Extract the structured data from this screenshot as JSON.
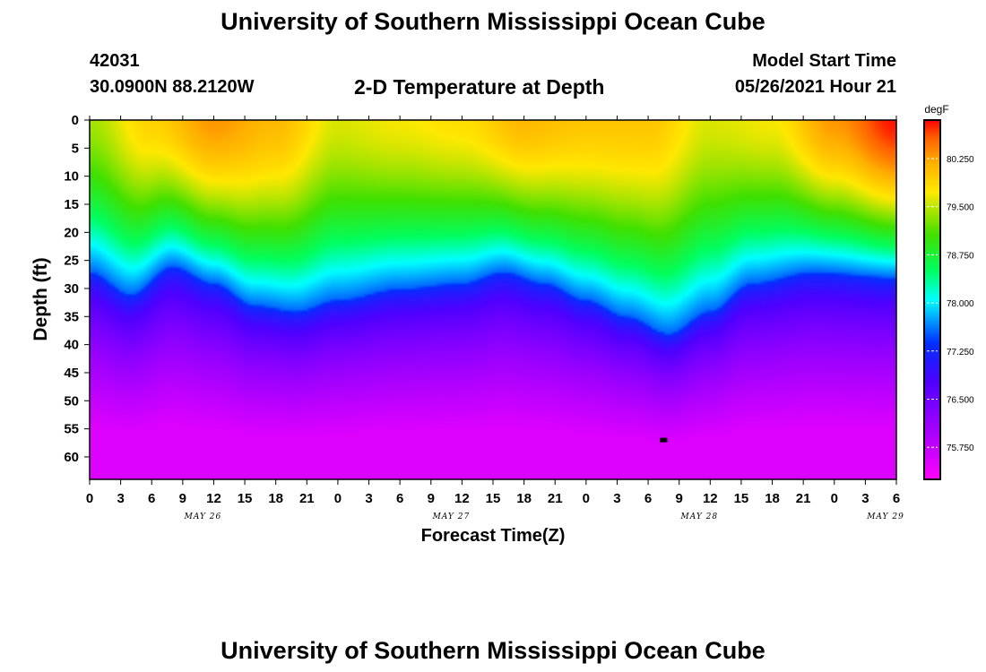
{
  "page": {
    "title_top": "University of Southern Mississippi Ocean Cube",
    "title_bottom": "University of Southern Mississippi Ocean Cube",
    "station_id": "42031",
    "station_coords": "30.0900N  88.2120W",
    "model_start_label": "Model Start Time",
    "model_start_value": "05/26/2021 Hour 21"
  },
  "chart_data": {
    "type": "heatmap",
    "title": "2-D Temperature at Depth",
    "xlabel": "Forecast Time(Z)",
    "ylabel": "Depth (ft)",
    "ylim": [
      0,
      64
    ],
    "xlim_hours": [
      0,
      78
    ],
    "y_ticks": [
      0,
      5,
      10,
      15,
      20,
      25,
      30,
      35,
      40,
      45,
      50,
      55,
      60
    ],
    "x_ticks": [
      {
        "h": 0,
        "label": "0"
      },
      {
        "h": 3,
        "label": "3"
      },
      {
        "h": 6,
        "label": "6"
      },
      {
        "h": 9,
        "label": "9"
      },
      {
        "h": 12,
        "label": "12"
      },
      {
        "h": 15,
        "label": "15"
      },
      {
        "h": 18,
        "label": "18"
      },
      {
        "h": 21,
        "label": "21"
      },
      {
        "h": 24,
        "label": "0"
      },
      {
        "h": 27,
        "label": "3"
      },
      {
        "h": 30,
        "label": "6"
      },
      {
        "h": 33,
        "label": "9"
      },
      {
        "h": 36,
        "label": "12"
      },
      {
        "h": 39,
        "label": "15"
      },
      {
        "h": 42,
        "label": "18"
      },
      {
        "h": 45,
        "label": "21"
      },
      {
        "h": 48,
        "label": "0"
      },
      {
        "h": 51,
        "label": "3"
      },
      {
        "h": 54,
        "label": "6"
      },
      {
        "h": 57,
        "label": "9"
      },
      {
        "h": 60,
        "label": "12"
      },
      {
        "h": 63,
        "label": "15"
      },
      {
        "h": 66,
        "label": "18"
      },
      {
        "h": 69,
        "label": "21"
      },
      {
        "h": 72,
        "label": "0"
      },
      {
        "h": 75,
        "label": "3"
      },
      {
        "h": 78,
        "label": "6"
      }
    ],
    "date_labels": [
      {
        "h": 12,
        "label": "MAY 26"
      },
      {
        "h": 36,
        "label": "MAY 27"
      },
      {
        "h": 60,
        "label": "MAY 28"
      },
      {
        "h": 78,
        "label": "MAY 29"
      }
    ],
    "colorbar": {
      "unit": "degF",
      "min": 75.25,
      "max": 80.85,
      "ticks": [
        75.75,
        76.5,
        77.25,
        78.0,
        78.75,
        79.5,
        80.25
      ],
      "tick_labels": [
        "75.750",
        "76.500",
        "77.250",
        "78.000",
        "78.750",
        "79.500",
        "80.250"
      ]
    },
    "thermocline_depth_ft": [
      {
        "h": 0,
        "d": 27
      },
      {
        "h": 4,
        "d": 31
      },
      {
        "h": 8,
        "d": 26
      },
      {
        "h": 12,
        "d": 29
      },
      {
        "h": 16,
        "d": 33
      },
      {
        "h": 20,
        "d": 34
      },
      {
        "h": 24,
        "d": 32
      },
      {
        "h": 30,
        "d": 30
      },
      {
        "h": 36,
        "d": 29
      },
      {
        "h": 40,
        "d": 27
      },
      {
        "h": 44,
        "d": 29
      },
      {
        "h": 48,
        "d": 32
      },
      {
        "h": 52,
        "d": 35
      },
      {
        "h": 56,
        "d": 38
      },
      {
        "h": 60,
        "d": 34
      },
      {
        "h": 64,
        "d": 29
      },
      {
        "h": 70,
        "d": 27
      },
      {
        "h": 78,
        "d": 28
      }
    ],
    "surface_temp_degF": [
      {
        "h": 0,
        "t": 79.4
      },
      {
        "h": 6,
        "t": 79.9
      },
      {
        "h": 12,
        "t": 80.3
      },
      {
        "h": 18,
        "t": 80.1
      },
      {
        "h": 24,
        "t": 79.6
      },
      {
        "h": 30,
        "t": 79.7
      },
      {
        "h": 36,
        "t": 79.8
      },
      {
        "h": 42,
        "t": 80.1
      },
      {
        "h": 48,
        "t": 80.0
      },
      {
        "h": 54,
        "t": 80.0
      },
      {
        "h": 60,
        "t": 79.6
      },
      {
        "h": 66,
        "t": 79.7
      },
      {
        "h": 72,
        "t": 80.3
      },
      {
        "h": 78,
        "t": 80.8
      }
    ],
    "bottom_temp_degF": 75.55,
    "markers": [
      {
        "h": 55.5,
        "d": 57
      }
    ]
  }
}
